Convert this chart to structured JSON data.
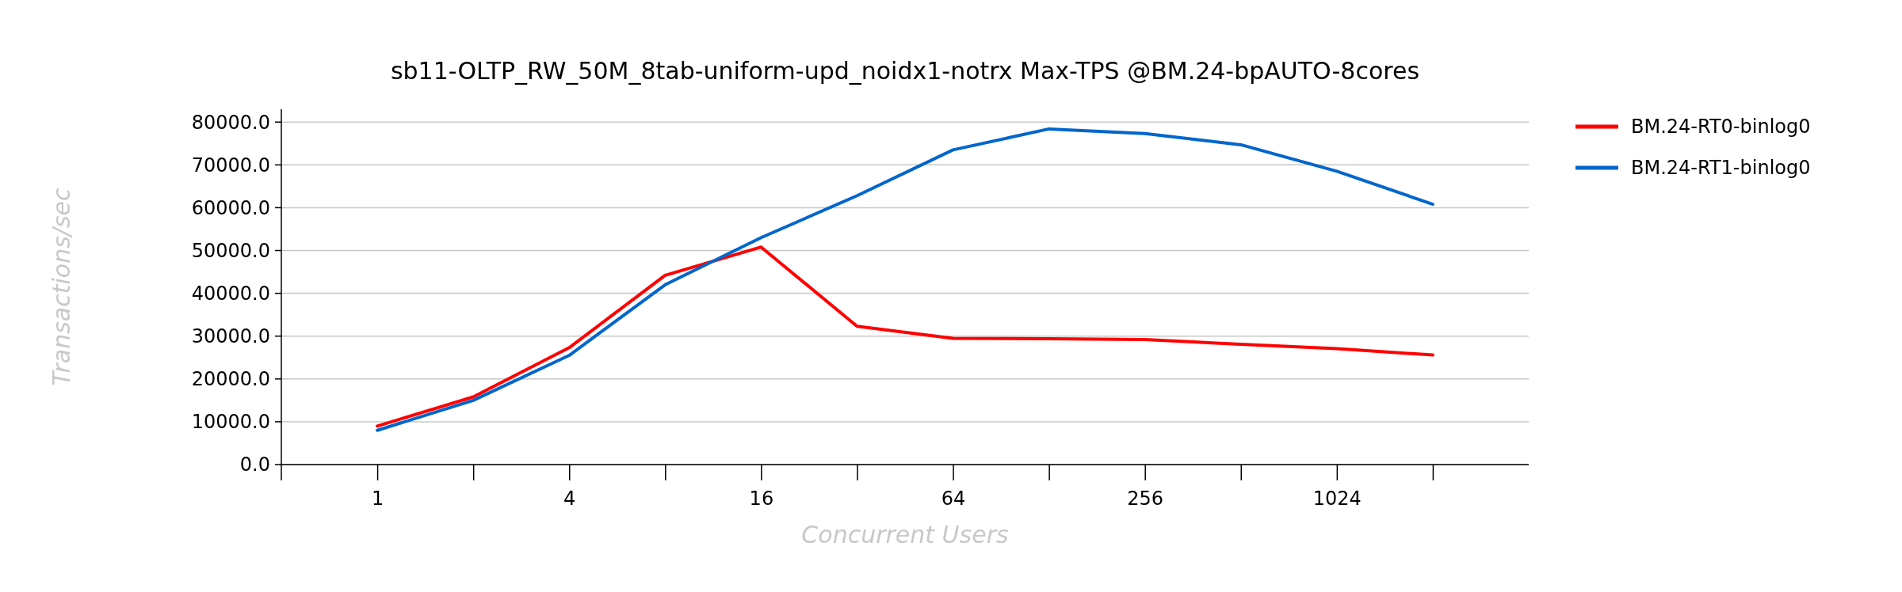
{
  "chart_data": {
    "type": "line",
    "title": "sb11-OLTP_RW_50M_8tab-uniform-upd_noidx1-notrx Max-TPS @BM.24-bpAUTO-8cores",
    "xlabel": "Concurrent Users",
    "ylabel": "Transactions/sec",
    "categories": [
      "1",
      null,
      "4",
      null,
      "16",
      null,
      "64",
      null,
      "256",
      null,
      "1024",
      null
    ],
    "ylim": [
      0,
      83000
    ],
    "yticks": [
      {
        "value": 0,
        "label": "0.0"
      },
      {
        "value": 10000,
        "label": "10000.0"
      },
      {
        "value": 20000,
        "label": "20000.0"
      },
      {
        "value": 30000,
        "label": "30000.0"
      },
      {
        "value": 40000,
        "label": "40000.0"
      },
      {
        "value": 50000,
        "label": "50000.0"
      },
      {
        "value": 60000,
        "label": "60000.0"
      },
      {
        "value": 70000,
        "label": "70000.0"
      },
      {
        "value": 80000,
        "label": "80000.0"
      }
    ],
    "grid": "y",
    "legend": "right",
    "marker": "none",
    "line_style": "solid",
    "series": [
      {
        "name": "BM.24-RT0-binlog0",
        "color": "#ff0000",
        "values": [
          9000,
          15800,
          27300,
          44200,
          50800,
          32300,
          29500,
          29400,
          29200,
          28100,
          27100,
          25600
        ]
      },
      {
        "name": "BM.24-RT1-binlog0",
        "color": "#0066cc",
        "values": [
          8000,
          15000,
          25500,
          42000,
          53000,
          62800,
          73500,
          78400,
          77300,
          74700,
          68500,
          60800
        ]
      }
    ]
  }
}
